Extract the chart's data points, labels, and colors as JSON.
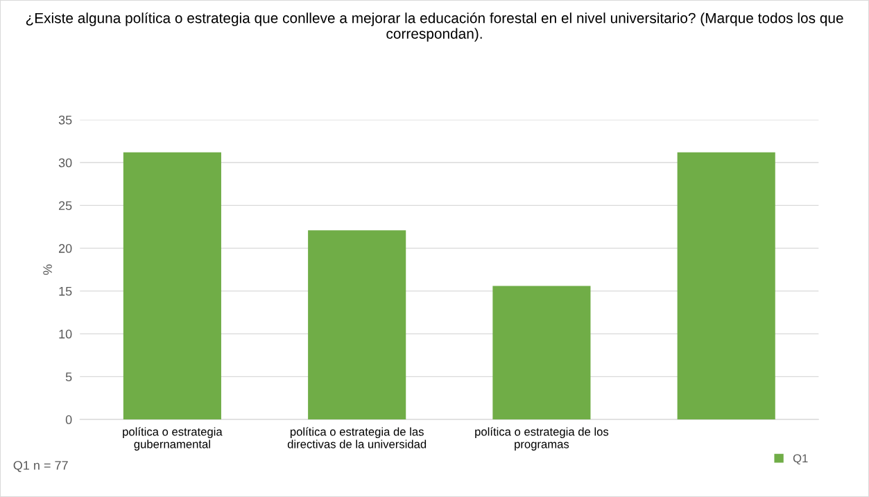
{
  "chart_data": {
    "type": "bar",
    "title": "¿Existe alguna política o estrategia que conlleve a mejorar la educación forestal en el nivel universitario? (Marque todos los que correspondan).",
    "categories": [
      "política o estrategia\ngubernamental",
      "política o estrategia de las\ndirectivas de la universidad",
      "política o estrategia de los\nprogramas",
      null
    ],
    "series": [
      {
        "name": "Q1",
        "color": "#70ad47",
        "values": [
          31.2,
          22.1,
          15.6,
          31.2
        ]
      }
    ],
    "ylabel": "%",
    "ylim": [
      0,
      35
    ],
    "yticks": [
      0,
      5,
      10,
      15,
      20,
      25,
      30,
      35
    ],
    "grid": "y",
    "legend": "bottom right",
    "annotations": [
      "Q1 n = 77"
    ]
  }
}
